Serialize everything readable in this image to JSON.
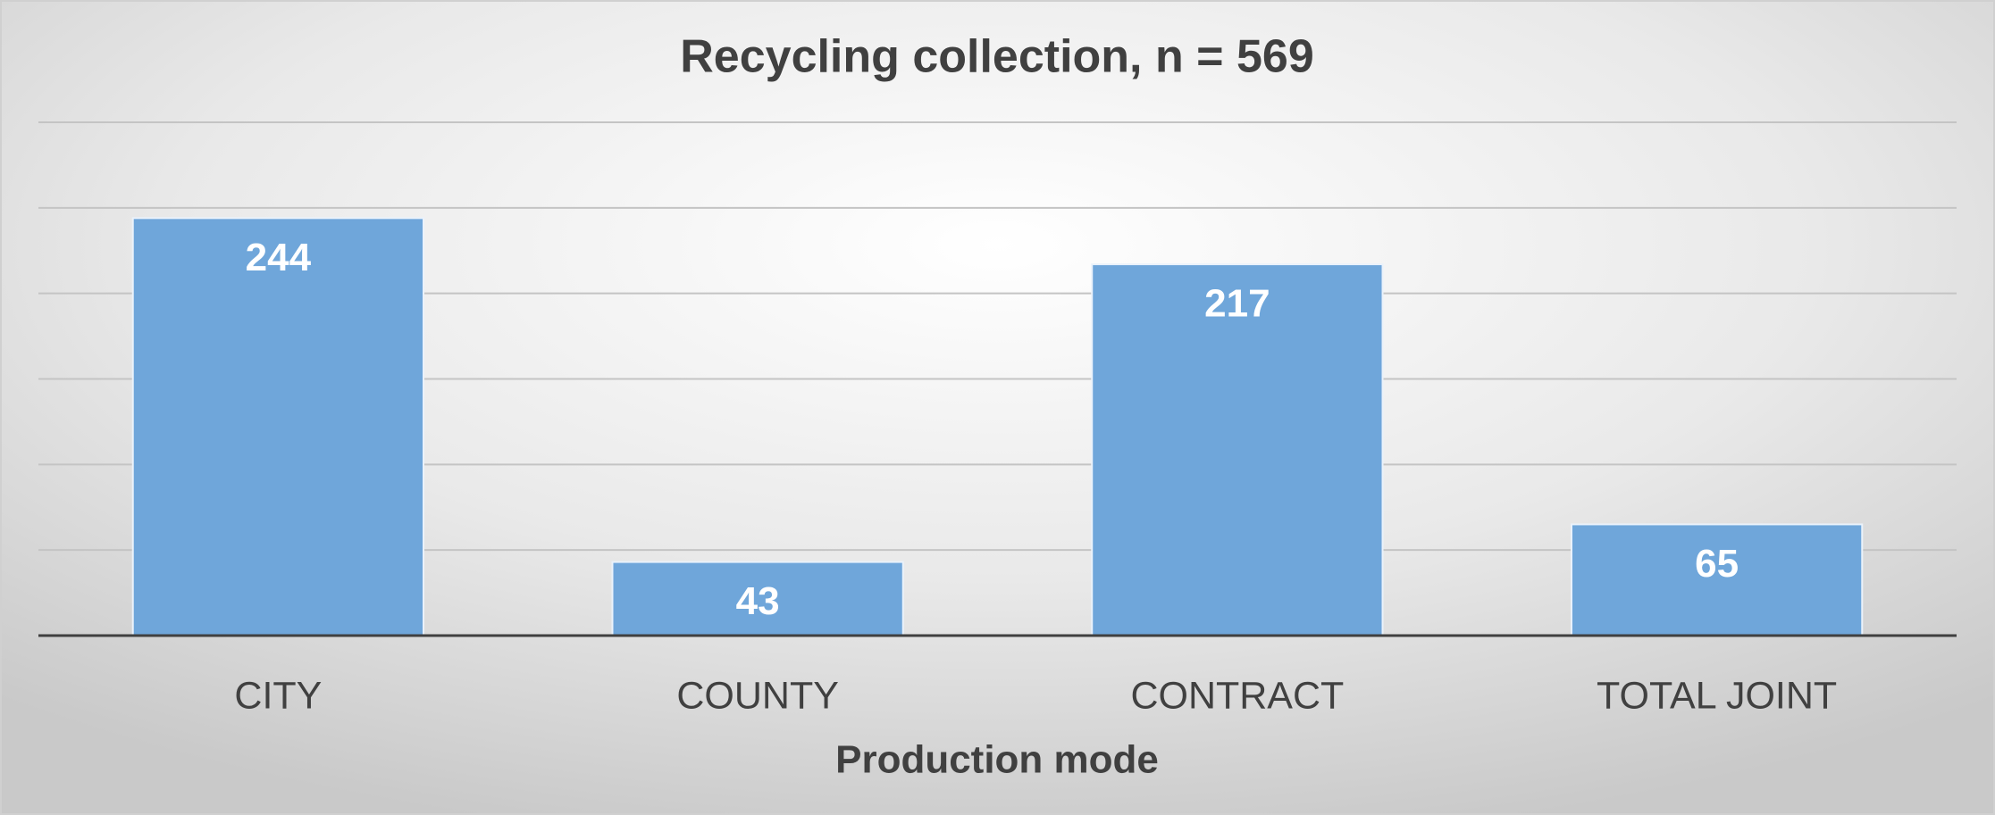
{
  "chart_data": {
    "type": "bar",
    "title": "Recycling collection, n = 569",
    "x_label": "Production mode",
    "categories": [
      "CITY",
      "COUNTY",
      "CONTRACT",
      "TOTAL JOINT"
    ],
    "values": [
      244,
      43,
      217,
      65
    ],
    "color": "#6fa6da",
    "ylim": [
      0,
      300
    ],
    "yticks": [
      0,
      50,
      100,
      150,
      200,
      250,
      300
    ],
    "grid": true
  }
}
